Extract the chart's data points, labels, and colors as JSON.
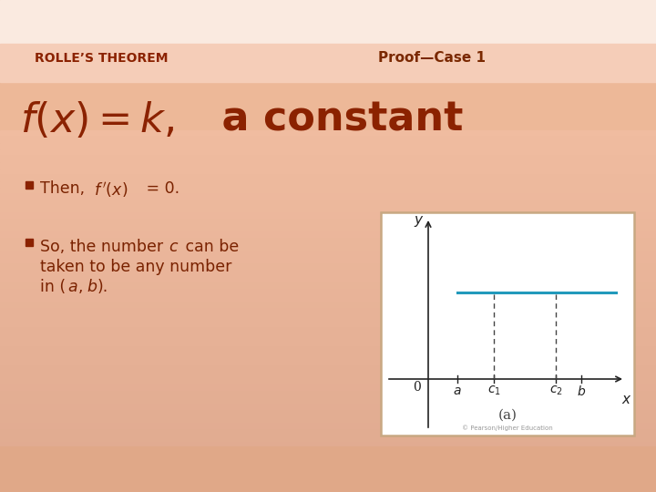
{
  "bg_color_top": "#f9e8dc",
  "bg_color_banner": "#f0c8b0",
  "bg_color_main": "#f0c0a0",
  "bg_color": "#edb898",
  "title_banner_color": "#f5d0bc",
  "slide_title": "ROLLE’S THEOREM",
  "slide_title_color": "#8b2200",
  "proof_label": "Proof—Case 1",
  "proof_label_color": "#7a2800",
  "bullet_color": "#7a2200",
  "bullet_square_color": "#8b2200",
  "graph_edge_color": "#c8a882",
  "graph_line_color": "#2299bb",
  "graph_dashed_color": "#444444",
  "axis_color": "#222222",
  "label_color": "#222222",
  "caption_color": "#444444",
  "copyright": "© Pearson/Higher Education"
}
